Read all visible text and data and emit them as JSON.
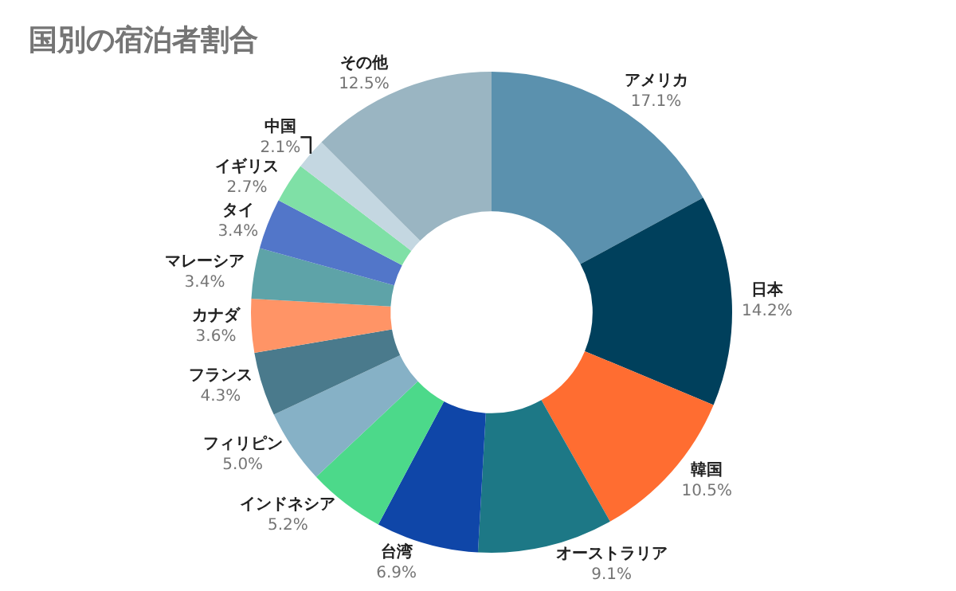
{
  "chart_data": {
    "type": "donut",
    "title": "国別の宿泊者割合",
    "categories": [
      "アメリカ",
      "日本",
      "韓国",
      "オーストラリア",
      "台湾",
      "インドネシア",
      "フィリピン",
      "フランス",
      "カナダ",
      "マレーシア",
      "タイ",
      "イギリス",
      "中国",
      "その他"
    ],
    "values": [
      17.1,
      14.2,
      10.5,
      9.1,
      6.9,
      5.2,
      5.0,
      4.3,
      3.6,
      3.4,
      3.4,
      2.7,
      2.1,
      12.5
    ],
    "value_labels": [
      "17.1%",
      "14.2%",
      "10.5%",
      "9.1%",
      "6.9%",
      "5.2%",
      "5.0%",
      "4.3%",
      "3.6%",
      "3.4%",
      "3.4%",
      "2.7%",
      "2.1%",
      "12.5%"
    ],
    "colors": [
      "#5b91ae",
      "#00405c",
      "#ff6d31",
      "#1d7886",
      "#0f46a8",
      "#4cd98a",
      "#86b1c6",
      "#4a7a8c",
      "#ff9466",
      "#5ea3a8",
      "#5276c9",
      "#7fe0a6",
      "#c4d7e1",
      "#9ab5c2"
    ],
    "legend": false
  }
}
